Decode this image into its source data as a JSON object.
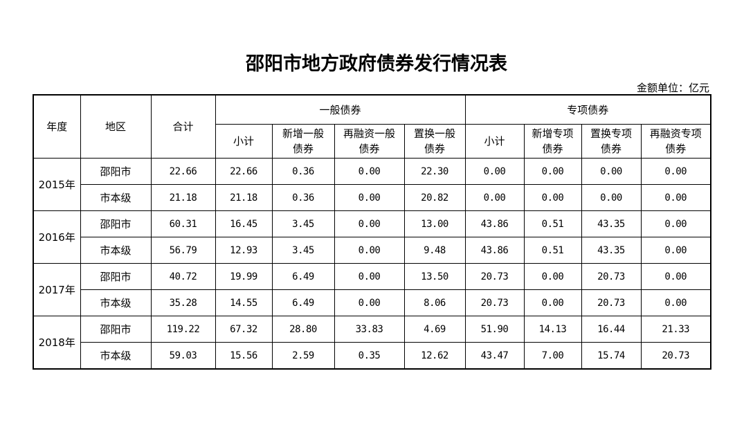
{
  "title": "邵阳市地方政府债券发行情况表",
  "unit": "金额单位：亿元",
  "headers": {
    "year": "年度",
    "region": "地区",
    "total": "合计",
    "general": "一般债券",
    "special": "专项债券",
    "general_sub": [
      "小计",
      "新增一般债券",
      "再融资一般债券",
      "置换一般债券"
    ],
    "special_sub": [
      "小计",
      "新增专项债券",
      "置换专项债券",
      "再融资专项债券"
    ]
  },
  "years": [
    {
      "year": "2015年",
      "rows": [
        {
          "region": "邵阳市",
          "values": [
            "22.66",
            "22.66",
            "0.36",
            "0.00",
            "22.30",
            "0.00",
            "0.00",
            "0.00",
            "0.00"
          ]
        },
        {
          "region": "市本级",
          "values": [
            "21.18",
            "21.18",
            "0.36",
            "0.00",
            "20.82",
            "0.00",
            "0.00",
            "0.00",
            "0.00"
          ]
        }
      ]
    },
    {
      "year": "2016年",
      "rows": [
        {
          "region": "邵阳市",
          "values": [
            "60.31",
            "16.45",
            "3.45",
            "0.00",
            "13.00",
            "43.86",
            "0.51",
            "43.35",
            "0.00"
          ]
        },
        {
          "region": "市本级",
          "values": [
            "56.79",
            "12.93",
            "3.45",
            "0.00",
            "9.48",
            "43.86",
            "0.51",
            "43.35",
            "0.00"
          ]
        }
      ]
    },
    {
      "year": "2017年",
      "rows": [
        {
          "region": "邵阳市",
          "values": [
            "40.72",
            "19.99",
            "6.49",
            "0.00",
            "13.50",
            "20.73",
            "0.00",
            "20.73",
            "0.00"
          ]
        },
        {
          "region": "市本级",
          "values": [
            "35.28",
            "14.55",
            "6.49",
            "0.00",
            "8.06",
            "20.73",
            "0.00",
            "20.73",
            "0.00"
          ]
        }
      ]
    },
    {
      "year": "2018年",
      "rows": [
        {
          "region": "邵阳市",
          "values": [
            "119.22",
            "67.32",
            "28.80",
            "33.83",
            "4.69",
            "51.90",
            "14.13",
            "16.44",
            "21.33"
          ]
        },
        {
          "region": "市本级",
          "values": [
            "59.03",
            "15.56",
            "2.59",
            "0.35",
            "12.62",
            "43.47",
            "7.00",
            "15.74",
            "20.73"
          ]
        }
      ]
    }
  ]
}
